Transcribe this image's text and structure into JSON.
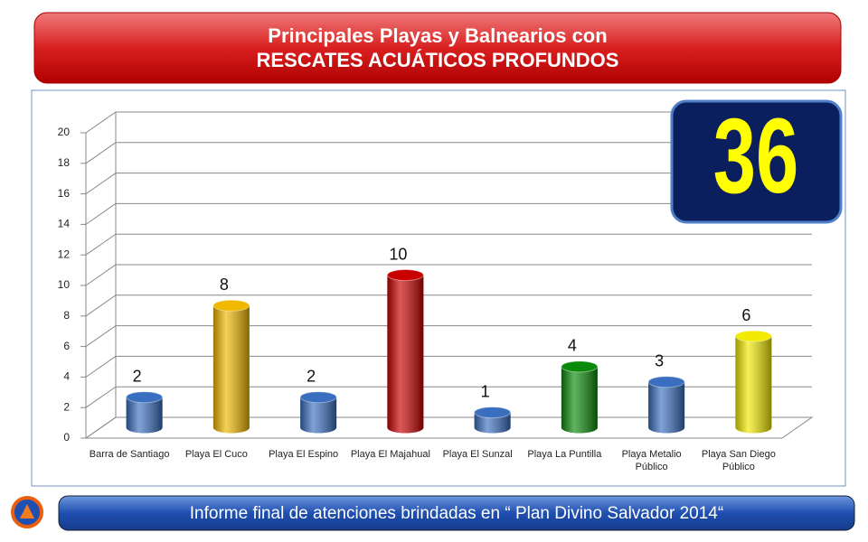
{
  "chart_data": {
    "type": "bar",
    "title": "Principales Playas y Balnearios con",
    "subtitle": "RESCATES ACUÁTICOS PROFUNDOS",
    "total": 36,
    "footer": "Informe final de atenciones brindadas en “ Plan Divino Salvador 2014“",
    "categories": [
      "Barra de Santiago",
      "Playa El Cuco",
      "Playa El Espino",
      "Playa El Majahual",
      "Playa El Sunzal",
      "Playa La Puntilla",
      "Playa Metalio Público",
      "Playa San Diego Público"
    ],
    "values": [
      2,
      8,
      2,
      10,
      1,
      4,
      3,
      6
    ],
    "colors": [
      "#3a6fc0",
      "#f0b800",
      "#3a6fc0",
      "#c80000",
      "#3a6fc0",
      "#0a8a0a",
      "#3a6fc0",
      "#f2ea00"
    ],
    "ylim": [
      0,
      20
    ],
    "yticks": [
      0,
      2,
      4,
      6,
      8,
      10,
      12,
      14,
      16,
      18,
      20
    ],
    "grid": true
  }
}
